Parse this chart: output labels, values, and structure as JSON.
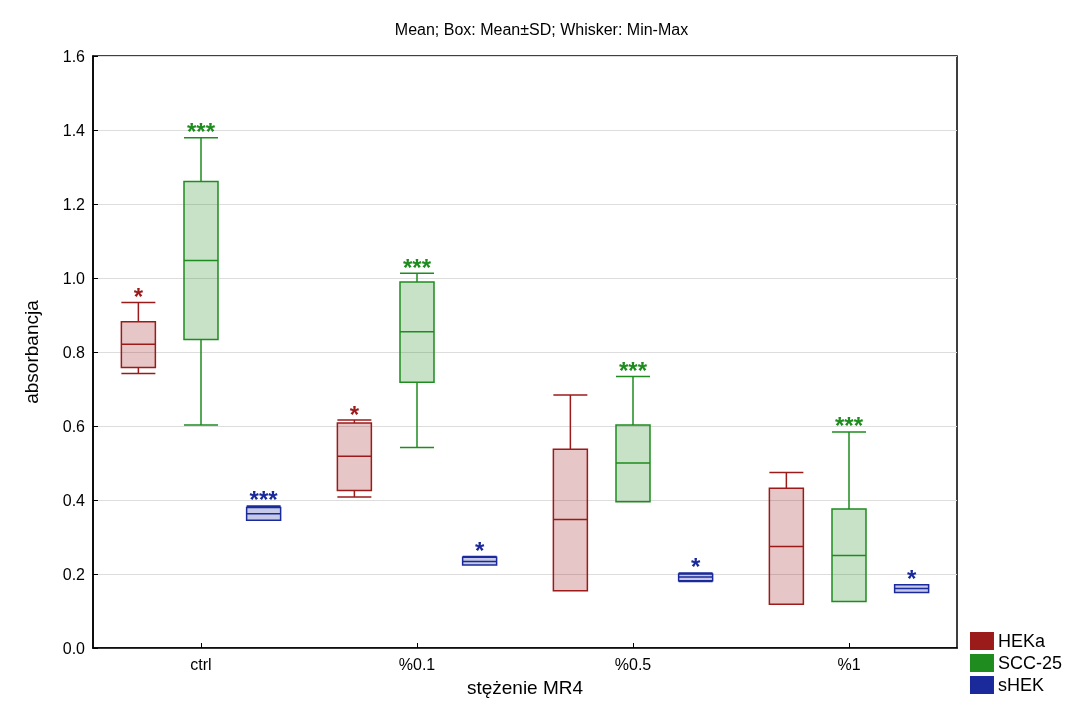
{
  "chart_data": {
    "type": "box",
    "title": "Mean; Box: Mean±SD; Whisker: Min-Max",
    "xlabel": "stężenie MR4",
    "ylabel": "absorbancja",
    "categories": [
      "ctrl",
      "%0.1",
      "%0.5",
      "%1"
    ],
    "series": [
      {
        "name": "HEKa",
        "color": "#9b1b1b",
        "value_labels": [
          "*",
          "*",
          null,
          null
        ],
        "boxes": [
          {
            "low": 0.742,
            "q1": 0.758,
            "median": 0.821,
            "q3": 0.882,
            "high": 0.934
          },
          {
            "low": 0.408,
            "q1": 0.426,
            "median": 0.518,
            "q3": 0.608,
            "high": 0.616
          },
          {
            "low": 0.155,
            "q1": 0.155,
            "median": 0.347,
            "q3": 0.537,
            "high": 0.684
          },
          {
            "low": 0.118,
            "q1": 0.118,
            "median": 0.274,
            "q3": 0.432,
            "high": 0.474
          }
        ]
      },
      {
        "name": "SCC-25",
        "color": "#1e8c1e",
        "value_labels": [
          "***",
          "***",
          "***",
          "***"
        ],
        "boxes": [
          {
            "low": 0.603,
            "q1": 0.834,
            "median": 1.047,
            "q3": 1.261,
            "high": 1.379
          },
          {
            "low": 0.542,
            "q1": 0.718,
            "median": 0.855,
            "q3": 0.989,
            "high": 1.013
          },
          {
            "low": 0.395,
            "q1": 0.395,
            "median": 0.5,
            "q3": 0.603,
            "high": 0.734
          },
          {
            "low": 0.126,
            "q1": 0.126,
            "median": 0.25,
            "q3": 0.376,
            "high": 0.584
          }
        ]
      },
      {
        "name": "sHEK",
        "color": "#1a2a9b",
        "value_labels": [
          "***",
          "*",
          "*",
          "*"
        ],
        "boxes": [
          {
            "low": 0.345,
            "q1": 0.345,
            "median": 0.363,
            "q3": 0.38,
            "high": 0.384
          },
          {
            "low": 0.224,
            "q1": 0.224,
            "median": 0.234,
            "q3": 0.245,
            "high": 0.247
          },
          {
            "low": 0.18,
            "q1": 0.182,
            "median": 0.192,
            "q3": 0.2,
            "high": 0.203
          },
          {
            "low": 0.15,
            "q1": 0.15,
            "median": 0.161,
            "q3": 0.171,
            "high": 0.171
          }
        ]
      }
    ],
    "ylim": [
      0,
      1.6
    ],
    "yticks": [
      {
        "value": 0,
        "label": "0.0"
      },
      {
        "value": 0.2,
        "label": "0.2"
      },
      {
        "value": 0.4,
        "label": "0.4"
      },
      {
        "value": 0.6,
        "label": "0.6"
      },
      {
        "value": 0.8,
        "label": "0.8"
      },
      {
        "value": 1.0,
        "label": "1.0"
      },
      {
        "value": 1.2,
        "label": "1.2"
      },
      {
        "value": 1.4,
        "label": "1.4"
      },
      {
        "value": 1.6,
        "label": "1.6"
      }
    ],
    "grid": "y",
    "legend": "bottom right"
  }
}
